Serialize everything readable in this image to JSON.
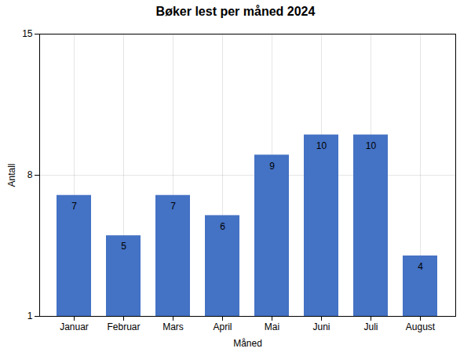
{
  "chart_data": {
    "type": "bar",
    "title": "Bøker lest per måned 2024",
    "xlabel": "Måned",
    "ylabel": "Antall",
    "categories": [
      "Januar",
      "Februar",
      "Mars",
      "April",
      "Mai",
      "Juni",
      "Juli",
      "August"
    ],
    "values": [
      7,
      5,
      7,
      6,
      9,
      10,
      10,
      4
    ],
    "color": "#4472C4",
    "ylim": [
      1,
      15
    ],
    "yticks": [
      1,
      8,
      15
    ],
    "grid": true,
    "data_labels": true
  }
}
